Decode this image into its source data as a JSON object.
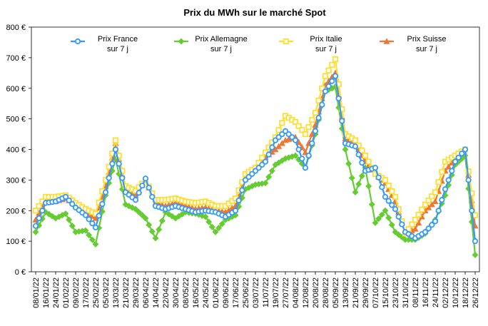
{
  "chart_data": {
    "type": "line",
    "title": "Prix du MWh sur le marché Spot",
    "ylim": [
      0,
      800
    ],
    "yticks": [
      "0 €",
      "100 €",
      "200 €",
      "300 €",
      "400 €",
      "500 €",
      "600 €",
      "700 €",
      "800 €"
    ],
    "grid": false,
    "legend_position": "top",
    "x": [
      "08/01/22",
      "16/01/22",
      "24/01/22",
      "01/02/22",
      "09/02/22",
      "17/02/22",
      "25/02/22",
      "05/03/22",
      "13/03/22",
      "21/03/22",
      "29/03/22",
      "06/04/22",
      "14/04/22",
      "22/04/22",
      "30/04/22",
      "08/05/22",
      "16/05/22",
      "24/05/22",
      "01/06/22",
      "09/06/22",
      "17/06/22",
      "25/06/22",
      "03/07/22",
      "11/07/22",
      "19/07/22",
      "27/07/22",
      "04/08/22",
      "12/08/22",
      "20/08/22",
      "28/08/22",
      "05/09/22",
      "13/09/22",
      "21/09/22",
      "29/09/22",
      "07/10/22",
      "15/10/22",
      "23/10/22",
      "31/10/22",
      "08/11/22",
      "16/11/22",
      "24/11/22",
      "02/12/22",
      "10/12/22",
      "18/12/22",
      "26/12/22"
    ],
    "series": [
      {
        "name": "Prix France\nsur 7 j",
        "color": "#3399ff",
        "marker": "circle",
        "values": [
          150,
          225,
          230,
          245,
          210,
          185,
          145,
          260,
          400,
          260,
          235,
          305,
          215,
          205,
          215,
          205,
          195,
          200,
          195,
          180,
          200,
          300,
          330,
          360,
          430,
          460,
          430,
          340,
          460,
          590,
          640,
          420,
          410,
          330,
          340,
          245,
          205,
          130,
          110,
          130,
          165,
          270,
          360,
          400,
          100
        ]
      },
      {
        "name": "Prix Allemagne\nsur 7 j",
        "color": "#66cc33",
        "marker": "diamond",
        "values": [
          130,
          195,
          175,
          190,
          130,
          135,
          90,
          250,
          370,
          220,
          205,
          175,
          110,
          195,
          175,
          195,
          190,
          180,
          130,
          170,
          185,
          270,
          285,
          290,
          350,
          370,
          380,
          340,
          450,
          590,
          605,
          400,
          260,
          340,
          160,
          200,
          130,
          105,
          105,
          125,
          170,
          250,
          350,
          380,
          55
        ]
      },
      {
        "name": "Prix Italie\nsur 7 j",
        "color": "#ffdd33",
        "marker": "square",
        "values": [
          200,
          245,
          245,
          250,
          225,
          205,
          190,
          300,
          430,
          280,
          265,
          300,
          235,
          235,
          240,
          230,
          225,
          230,
          215,
          215,
          240,
          320,
          340,
          390,
          440,
          510,
          490,
          450,
          520,
          640,
          695,
          450,
          430,
          380,
          320,
          300,
          245,
          125,
          170,
          220,
          260,
          360,
          380,
          400,
          185
        ]
      },
      {
        "name": "Prix Suisse\nsur 7 j",
        "color": "#ee7733",
        "marker": "triangle",
        "values": [
          170,
          235,
          230,
          240,
          220,
          195,
          175,
          280,
          420,
          265,
          250,
          300,
          225,
          215,
          225,
          215,
          205,
          210,
          200,
          195,
          215,
          305,
          340,
          375,
          400,
          430,
          440,
          390,
          480,
          610,
          650,
          435,
          420,
          360,
          320,
          290,
          230,
          125,
          140,
          200,
          230,
          330,
          370,
          400,
          150
        ]
      }
    ]
  }
}
